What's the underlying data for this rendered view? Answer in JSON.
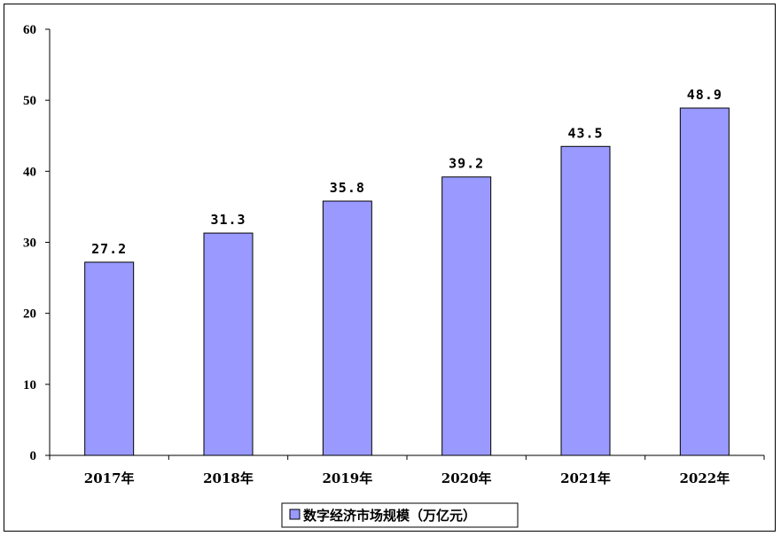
{
  "chart_data": {
    "type": "bar",
    "categories": [
      "2017年",
      "2018年",
      "2019年",
      "2020年",
      "2021年",
      "2022年"
    ],
    "series": [
      {
        "name": "数字经济市场规模（万亿元）",
        "values": [
          27.2,
          31.3,
          35.8,
          39.2,
          43.5,
          48.9
        ],
        "value_labels": [
          "27.2",
          "31.3",
          "35.8",
          "39.2",
          "43.5",
          "48.9"
        ]
      }
    ],
    "ylim": [
      0,
      60
    ],
    "yticks": [
      "0",
      "10",
      "20",
      "30",
      "40",
      "50",
      "60"
    ],
    "grid": false,
    "legend_position": "bottom",
    "colors": {
      "bar_fill": "#9999ff",
      "bar_stroke": "#000000"
    }
  }
}
